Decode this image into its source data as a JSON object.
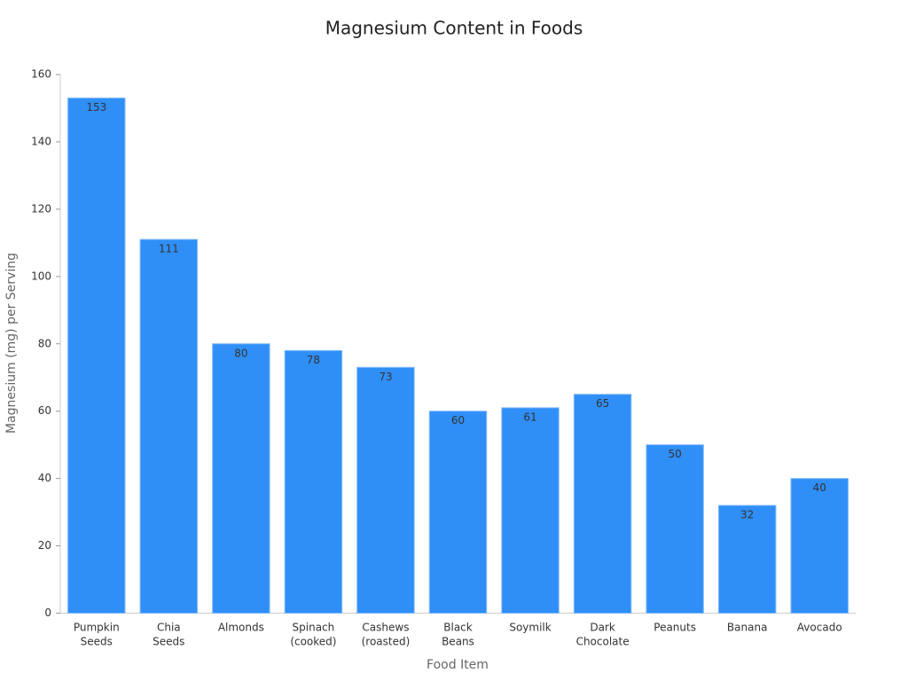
{
  "chart_data": {
    "type": "bar",
    "title": "Magnesium Content in Foods",
    "x_label": "Food Item",
    "y_label": "Magnesium (mg) per Serving",
    "categories": [
      "Pumpkin Seeds",
      "Chia Seeds",
      "Almonds",
      "Spinach (cooked)",
      "Cashews (roasted)",
      "Black Beans",
      "Soymilk",
      "Dark Chocolate",
      "Peanuts",
      "Banana",
      "Avocado"
    ],
    "values": [
      153,
      111,
      80,
      78,
      73,
      60,
      61,
      65,
      50,
      32,
      40
    ],
    "color": "#2f8ff7",
    "ylim": [
      0,
      160
    ],
    "yticks": [
      0,
      20,
      40,
      60,
      80,
      100,
      120,
      140,
      160
    ],
    "grid": false
  }
}
